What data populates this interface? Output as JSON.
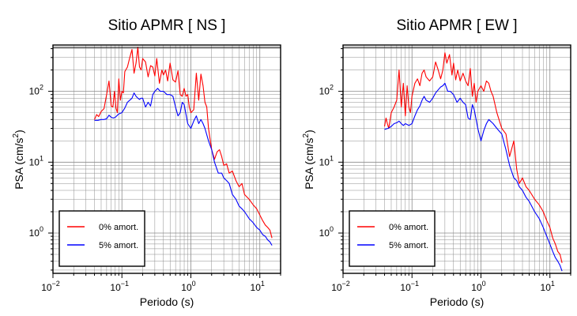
{
  "chart_data": [
    {
      "type": "line",
      "title": "Sitio APMR [ NS ]",
      "xlabel": "Periodo (s)",
      "ylabel": "PSA (cm/s",
      "ylabel_sup": "2",
      "ylabel_close": ")",
      "xscale": "log",
      "yscale": "log",
      "xlim": [
        0.01,
        20
      ],
      "ylim": [
        0.27,
        450
      ],
      "grid": true,
      "legend_position": "bottom-left",
      "x_ticks": [
        {
          "base": "10",
          "exp": "−2",
          "value": 0.01
        },
        {
          "base": "10",
          "exp": "−1",
          "value": 0.1
        },
        {
          "base": "10",
          "exp": "0",
          "value": 1
        },
        {
          "base": "10",
          "exp": "1",
          "value": 10
        }
      ],
      "y_ticks": [
        {
          "base": "10",
          "exp": "0",
          "value": 1
        },
        {
          "base": "10",
          "exp": "1",
          "value": 10
        },
        {
          "base": "10",
          "exp": "2",
          "value": 100
        }
      ],
      "series": [
        {
          "name": "0% amort.",
          "color": "#ff0000",
          "x": [
            0.04,
            0.043,
            0.046,
            0.05,
            0.055,
            0.06,
            0.065,
            0.07,
            0.074,
            0.078,
            0.082,
            0.086,
            0.09,
            0.095,
            0.1,
            0.105,
            0.11,
            0.12,
            0.13,
            0.14,
            0.15,
            0.16,
            0.17,
            0.18,
            0.19,
            0.2,
            0.22,
            0.24,
            0.26,
            0.28,
            0.3,
            0.32,
            0.35,
            0.38,
            0.4,
            0.43,
            0.46,
            0.5,
            0.55,
            0.6,
            0.65,
            0.7,
            0.75,
            0.8,
            0.85,
            0.9,
            0.95,
            1.0,
            1.1,
            1.2,
            1.3,
            1.4,
            1.5,
            1.6,
            1.7,
            1.8,
            2.0,
            2.2,
            2.4,
            2.6,
            2.8,
            3.0,
            3.3,
            3.6,
            4.0,
            4.5,
            5.0,
            5.5,
            6.0,
            7.0,
            8.0,
            9.0,
            10.0,
            11.0,
            12.0,
            13.0,
            14.0,
            15.0
          ],
          "y": [
            40,
            47,
            44,
            52,
            57,
            90,
            140,
            62,
            60,
            100,
            58,
            50,
            150,
            75,
            100,
            95,
            190,
            220,
            300,
            390,
            180,
            250,
            420,
            220,
            200,
            290,
            260,
            160,
            230,
            220,
            165,
            290,
            130,
            200,
            170,
            200,
            140,
            250,
            145,
            135,
            195,
            90,
            85,
            110,
            85,
            90,
            60,
            50,
            55,
            180,
            75,
            175,
            120,
            70,
            60,
            30,
            15,
            11,
            14,
            15,
            12,
            9,
            9.5,
            7,
            7.5,
            5.5,
            4.5,
            5,
            3.5,
            3,
            2.5,
            2.2,
            1.8,
            1.5,
            1.3,
            1.2,
            1.1,
            0.85
          ]
        },
        {
          "name": "5% amort.",
          "color": "#0000ff",
          "x": [
            0.04,
            0.045,
            0.05,
            0.055,
            0.06,
            0.065,
            0.07,
            0.075,
            0.08,
            0.09,
            0.1,
            0.11,
            0.12,
            0.13,
            0.14,
            0.15,
            0.16,
            0.17,
            0.18,
            0.19,
            0.2,
            0.22,
            0.24,
            0.26,
            0.28,
            0.3,
            0.33,
            0.36,
            0.4,
            0.45,
            0.5,
            0.55,
            0.6,
            0.65,
            0.7,
            0.75,
            0.8,
            0.9,
            1.0,
            1.1,
            1.2,
            1.3,
            1.4,
            1.5,
            1.6,
            1.8,
            2.0,
            2.2,
            2.5,
            2.8,
            3.0,
            3.3,
            3.6,
            4.0,
            4.5,
            5.0,
            5.5,
            6.0,
            7.0,
            8.0,
            9.0,
            10.0,
            11.0,
            12.0,
            13.0,
            14.0,
            15.0
          ],
          "y": [
            39,
            39,
            40,
            40,
            41,
            46,
            43,
            42,
            43,
            48,
            50,
            58,
            70,
            75,
            80,
            95,
            85,
            80,
            77,
            80,
            80,
            60,
            70,
            62,
            90,
            100,
            110,
            100,
            100,
            90,
            90,
            85,
            60,
            45,
            50,
            70,
            65,
            35,
            30,
            38,
            45,
            35,
            40,
            35,
            30,
            20,
            15,
            10,
            7,
            7,
            6,
            5.5,
            5,
            3.5,
            3,
            2.4,
            2.2,
            2.0,
            1.6,
            1.4,
            1.2,
            1.1,
            0.95,
            0.9,
            0.8,
            0.75,
            0.67
          ]
        }
      ]
    },
    {
      "type": "line",
      "title": "Sitio APMR [ EW ]",
      "xlabel": "Periodo (s)",
      "ylabel": "PSA (cm/s",
      "ylabel_sup": "2",
      "ylabel_close": ")",
      "xscale": "log",
      "yscale": "log",
      "xlim": [
        0.01,
        20
      ],
      "ylim": [
        0.27,
        450
      ],
      "grid": true,
      "legend_position": "bottom-left",
      "x_ticks": [
        {
          "base": "10",
          "exp": "−2",
          "value": 0.01
        },
        {
          "base": "10",
          "exp": "−1",
          "value": 0.1
        },
        {
          "base": "10",
          "exp": "0",
          "value": 1
        },
        {
          "base": "10",
          "exp": "1",
          "value": 10
        }
      ],
      "y_ticks": [
        {
          "base": "10",
          "exp": "0",
          "value": 1
        },
        {
          "base": "10",
          "exp": "1",
          "value": 10
        },
        {
          "base": "10",
          "exp": "2",
          "value": 100
        }
      ],
      "series": [
        {
          "name": "0% amort.",
          "color": "#ff0000",
          "x": [
            0.04,
            0.042,
            0.044,
            0.046,
            0.05,
            0.055,
            0.06,
            0.065,
            0.07,
            0.075,
            0.08,
            0.085,
            0.09,
            0.095,
            0.1,
            0.11,
            0.12,
            0.13,
            0.14,
            0.15,
            0.16,
            0.18,
            0.2,
            0.22,
            0.24,
            0.26,
            0.28,
            0.3,
            0.32,
            0.35,
            0.38,
            0.4,
            0.43,
            0.46,
            0.5,
            0.55,
            0.6,
            0.65,
            0.7,
            0.75,
            0.8,
            0.85,
            0.9,
            1.0,
            1.1,
            1.2,
            1.3,
            1.4,
            1.5,
            1.7,
            2.0,
            2.3,
            2.6,
            3.0,
            3.3,
            3.6,
            4.0,
            4.5,
            5.0,
            6.0,
            7.0,
            8.0,
            9.0,
            10.0,
            11.0,
            12.0,
            13.0,
            14.0,
            15.0
          ],
          "y": [
            32,
            42,
            35,
            30,
            50,
            60,
            75,
            200,
            60,
            130,
            45,
            120,
            60,
            50,
            85,
            130,
            150,
            120,
            180,
            200,
            160,
            140,
            160,
            260,
            200,
            150,
            200,
            350,
            250,
            330,
            170,
            250,
            145,
            200,
            140,
            180,
            140,
            120,
            210,
            85,
            130,
            70,
            100,
            120,
            100,
            140,
            130,
            100,
            85,
            50,
            30,
            25,
            12,
            20,
            8,
            5,
            6,
            4.5,
            4,
            3,
            2.5,
            2,
            1.5,
            1.2,
            0.85,
            0.7,
            0.55,
            0.5,
            0.38
          ]
        },
        {
          "name": "5% amort.",
          "color": "#0000ff",
          "x": [
            0.04,
            0.045,
            0.05,
            0.055,
            0.06,
            0.065,
            0.07,
            0.075,
            0.08,
            0.09,
            0.1,
            0.11,
            0.12,
            0.13,
            0.14,
            0.15,
            0.16,
            0.18,
            0.2,
            0.22,
            0.24,
            0.26,
            0.28,
            0.3,
            0.33,
            0.36,
            0.4,
            0.45,
            0.5,
            0.55,
            0.6,
            0.65,
            0.7,
            0.75,
            0.8,
            0.9,
            1.0,
            1.1,
            1.2,
            1.3,
            1.5,
            1.7,
            2.0,
            2.3,
            2.6,
            3.0,
            3.3,
            3.6,
            4.0,
            4.5,
            5.0,
            6.0,
            7.0,
            8.0,
            9.0,
            10.0,
            11.0,
            12.0,
            13.0,
            14.0,
            15.0
          ],
          "y": [
            29,
            30,
            32,
            35,
            36,
            38,
            35,
            33,
            35,
            33,
            35,
            45,
            55,
            62,
            75,
            85,
            75,
            70,
            80,
            95,
            105,
            115,
            120,
            130,
            100,
            100,
            90,
            70,
            80,
            70,
            65,
            42,
            40,
            65,
            55,
            30,
            20,
            28,
            35,
            40,
            35,
            30,
            25,
            15,
            9,
            6,
            5.5,
            4.5,
            4,
            3.2,
            2.8,
            2.0,
            1.6,
            1.2,
            0.9,
            0.7,
            0.55,
            0.45,
            0.4,
            0.35,
            0.29
          ]
        }
      ]
    }
  ]
}
